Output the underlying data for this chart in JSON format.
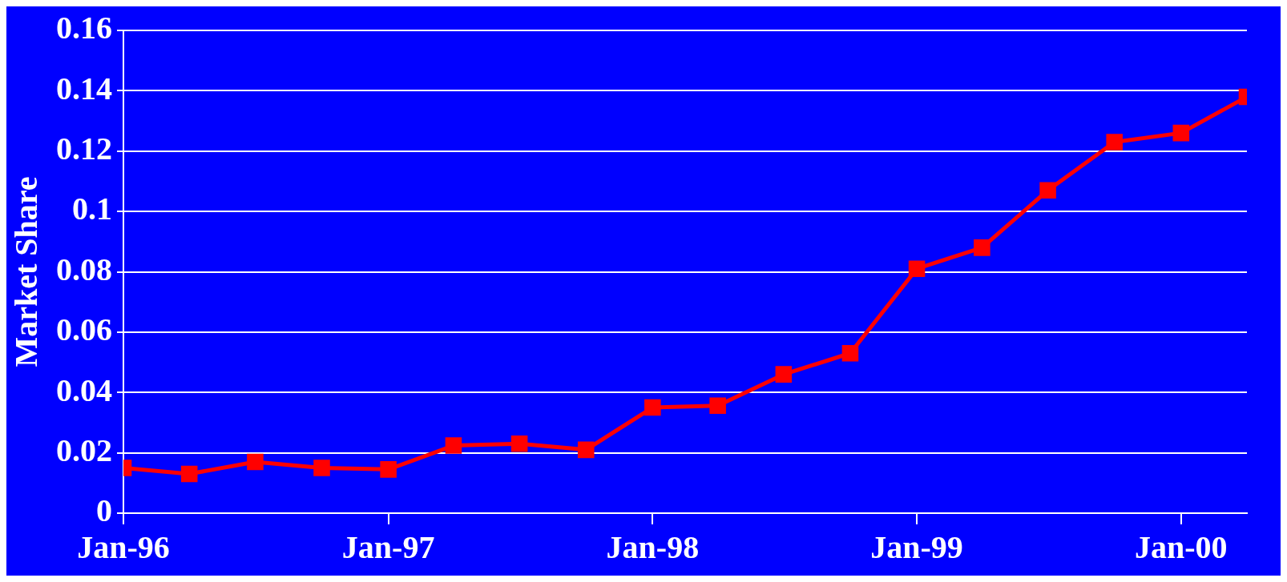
{
  "chart_data": {
    "type": "line",
    "ylabel": "Market Share",
    "x": [
      "1996-01",
      "1996-04",
      "1996-07",
      "1996-10",
      "1997-01",
      "1997-04",
      "1997-07",
      "1997-10",
      "1998-01",
      "1998-04",
      "1998-07",
      "1998-10",
      "1999-01",
      "1999-04",
      "1999-07",
      "1999-10",
      "2000-01",
      "2000-04"
    ],
    "series": [
      {
        "color": "#ff0000",
        "values": [
          0.015,
          0.013,
          0.017,
          0.015,
          0.0145,
          0.0224,
          0.023,
          0.021,
          0.035,
          0.0356,
          0.046,
          0.053,
          0.081,
          0.088,
          0.107,
          0.123,
          0.126,
          0.138
        ]
      }
    ],
    "xlim": [
      "1996-01",
      "2000-04"
    ],
    "xticks": [
      {
        "value": "1996-01",
        "label": "Jan-96"
      },
      {
        "value": "1997-01",
        "label": "Jan-97"
      },
      {
        "value": "1998-01",
        "label": "Jan-98"
      },
      {
        "value": "1999-01",
        "label": "Jan-99"
      },
      {
        "value": "2000-01",
        "label": "Jan-00"
      }
    ],
    "ylim": [
      0,
      0.16
    ],
    "yticks": [
      0,
      0.02,
      0.04,
      0.06,
      0.08,
      0.1,
      0.12,
      0.14,
      0.16
    ],
    "grid": "y",
    "legend": false,
    "marker": "square",
    "line_style": "solid"
  }
}
